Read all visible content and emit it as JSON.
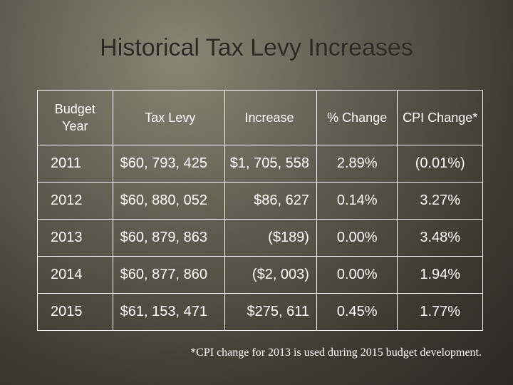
{
  "title": "Historical Tax Levy Increases",
  "table": {
    "headers": [
      "Budget Year",
      "Tax Levy",
      "Increase",
      "% Change",
      "CPI Change*"
    ],
    "rows": [
      [
        "2011",
        "$60, 793, 425",
        "$1, 705, 558",
        "2.89%",
        "(0.01%)"
      ],
      [
        "2012",
        "$60, 880, 052",
        "$86, 627",
        "0.14%",
        "3.27%"
      ],
      [
        "2013",
        "$60, 879, 863",
        "($189)",
        "0.00%",
        "3.48%"
      ],
      [
        "2014",
        "$60, 877, 860",
        "($2, 003)",
        "0.00%",
        "1.94%"
      ],
      [
        "2015",
        "$61, 153, 471",
        "$275, 611",
        "0.45%",
        "1.77%"
      ]
    ]
  },
  "footnote": "*CPI change for 2013 is used during 2015 budget development.",
  "colors": {
    "text": "#ffffff",
    "title": "#2a2922",
    "background": "#5d5a4d"
  }
}
